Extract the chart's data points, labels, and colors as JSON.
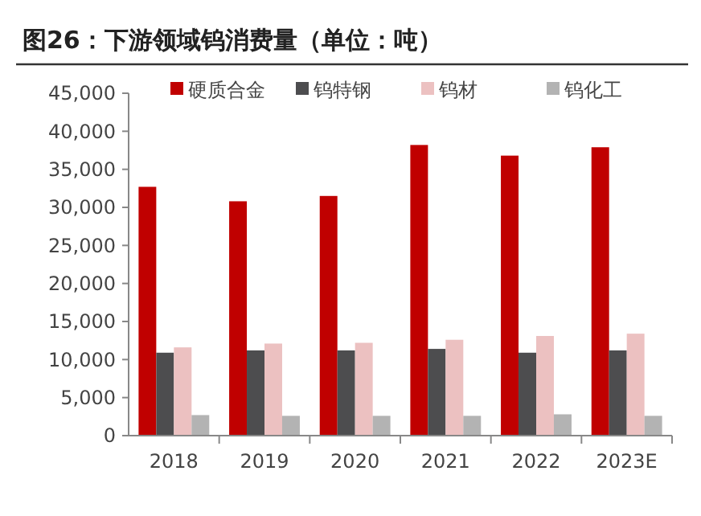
{
  "chart_data": {
    "type": "bar",
    "title": "图26：下游领域钨消费量（单位：吨）",
    "categories": [
      "2018",
      "2019",
      "2020",
      "2021",
      "2022",
      "2023E"
    ],
    "series": [
      {
        "name": "硬质合金",
        "color": "#c00000",
        "values": [
          32700,
          30800,
          31500,
          38200,
          36800,
          37900
        ]
      },
      {
        "name": "钨特钢",
        "color": "#4d4d4f",
        "values": [
          10900,
          11200,
          11200,
          11400,
          10900,
          11200
        ]
      },
      {
        "name": "钨材",
        "color": "#ecc1c1",
        "values": [
          11600,
          12100,
          12200,
          12600,
          13100,
          13400
        ]
      },
      {
        "name": "钨化工",
        "color": "#b3b3b3",
        "values": [
          2700,
          2600,
          2600,
          2600,
          2800,
          2600
        ]
      }
    ],
    "ylim": [
      0,
      45000
    ],
    "yticks": [
      0,
      {
        "value": 5000,
        "label": "5,000"
      },
      {
        "value": 10000,
        "label": "10,000"
      },
      {
        "value": 15000,
        "label": "15,000"
      },
      {
        "value": 20000,
        "label": "20,000"
      },
      {
        "value": 25000,
        "label": "25,000"
      },
      {
        "value": 30000,
        "label": "30,000"
      },
      {
        "value": 35000,
        "label": "35,000"
      },
      {
        "value": 40000,
        "label": "40,000"
      },
      {
        "value": 45000,
        "label": "45,000"
      }
    ],
    "grid": false,
    "legend": "top"
  }
}
